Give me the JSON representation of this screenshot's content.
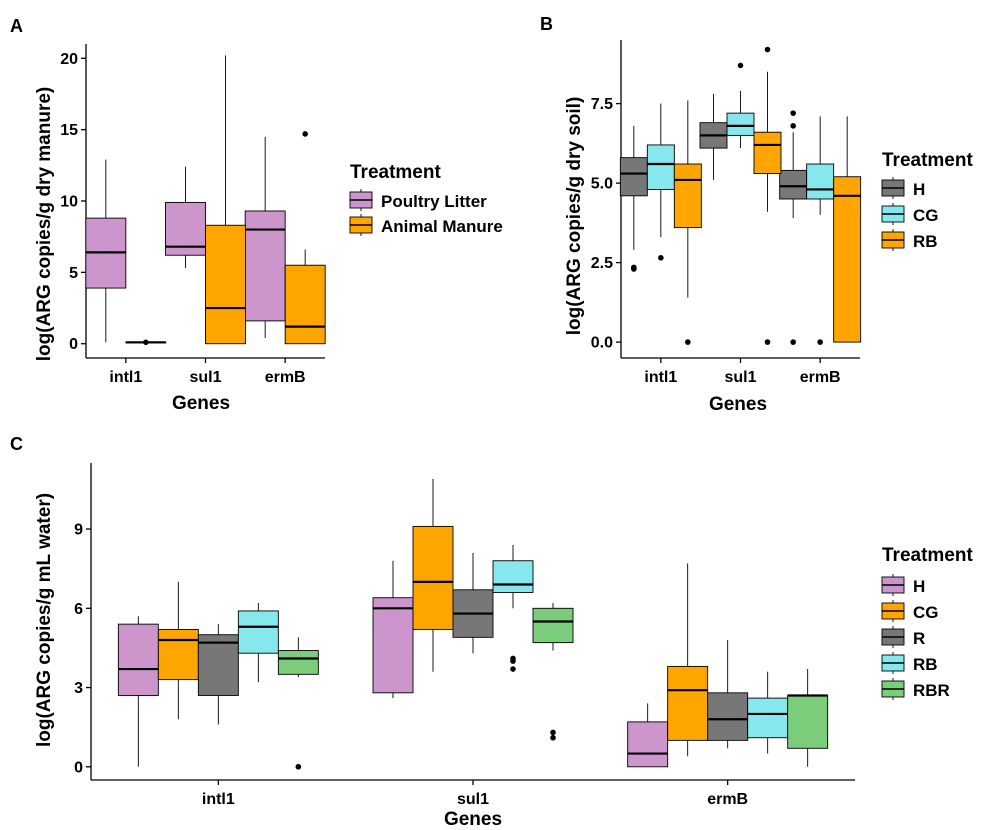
{
  "colors": {
    "poultry_litter": "#CC96CC",
    "animal_manure": "#FFA500",
    "H_B": "#777777",
    "CG_B": "#86E8EC",
    "RB_B": "#FFA500",
    "H_C": "#CC96CC",
    "CG_C": "#FFA500",
    "R": "#777777",
    "RB_C": "#86E8EC",
    "RBR": "#7BCD7B"
  },
  "chart_data": [
    {
      "panel": "A",
      "type": "box",
      "xlabel": "Genes",
      "ylabel": "log(ARG copies/g dry manure)",
      "categories": [
        "intl1",
        "sul1",
        "ermB"
      ],
      "yticks": [
        0,
        5,
        10,
        15,
        20
      ],
      "ylim": [
        -1.0,
        21.0
      ],
      "legend": {
        "title": "Treatment",
        "entries": [
          {
            "label": "Poultry Litter",
            "color": "poultry_litter"
          },
          {
            "label": "Animal Manure",
            "color": "animal_manure"
          }
        ]
      },
      "series": [
        {
          "name": "Poultry Litter",
          "color": "poultry_litter",
          "boxes": [
            {
              "min": 0.1,
              "q1": 3.9,
              "median": 6.4,
              "q3": 8.8,
              "max": 12.9,
              "outliers": []
            },
            {
              "min": 5.3,
              "q1": 6.2,
              "median": 6.8,
              "q3": 9.9,
              "max": 12.4,
              "outliers": []
            },
            {
              "min": 0.4,
              "q1": 1.6,
              "median": 8.0,
              "q3": 9.3,
              "max": 14.5,
              "outliers": []
            }
          ]
        },
        {
          "name": "Animal Manure",
          "color": "animal_manure",
          "boxes": [
            {
              "min": 0.1,
              "q1": 0.1,
              "median": 0.1,
              "q3": 0.1,
              "max": 0.1,
              "outliers": [
                0.1
              ]
            },
            {
              "min": 0.0,
              "q1": 0.0,
              "median": 2.5,
              "q3": 8.3,
              "max": 20.2,
              "outliers": []
            },
            {
              "min": 0.0,
              "q1": 0.0,
              "median": 1.2,
              "q3": 5.5,
              "max": 6.6,
              "outliers": [
                14.7
              ]
            }
          ]
        }
      ]
    },
    {
      "panel": "B",
      "type": "box",
      "xlabel": "Genes",
      "ylabel": "log(ARG copies/g dry soil)",
      "categories": [
        "intl1",
        "sul1",
        "ermB"
      ],
      "yticks": [
        0.0,
        2.5,
        5.0,
        7.5
      ],
      "ylim": [
        -0.5,
        9.5
      ],
      "legend": {
        "title": "Treatment",
        "entries": [
          {
            "label": "H",
            "color": "H_B"
          },
          {
            "label": "CG",
            "color": "CG_B"
          },
          {
            "label": "RB",
            "color": "RB_B"
          }
        ]
      },
      "series": [
        {
          "name": "H",
          "color": "H_B",
          "boxes": [
            {
              "min": 2.9,
              "q1": 4.6,
              "median": 5.3,
              "q3": 5.8,
              "max": 6.8,
              "outliers": [
                2.3,
                2.35
              ]
            },
            {
              "min": 5.1,
              "q1": 6.1,
              "median": 6.5,
              "q3": 6.9,
              "max": 7.8,
              "outliers": []
            },
            {
              "min": 3.9,
              "q1": 4.5,
              "median": 4.9,
              "q3": 5.4,
              "max": 6.6,
              "outliers": [
                0.0,
                6.8,
                7.2
              ]
            }
          ]
        },
        {
          "name": "CG",
          "color": "CG_B",
          "boxes": [
            {
              "min": 3.3,
              "q1": 4.8,
              "median": 5.6,
              "q3": 6.2,
              "max": 7.5,
              "outliers": [
                2.65
              ]
            },
            {
              "min": 6.1,
              "q1": 6.5,
              "median": 6.8,
              "q3": 7.2,
              "max": 7.9,
              "outliers": [
                8.7
              ]
            },
            {
              "min": 4.0,
              "q1": 4.5,
              "median": 4.8,
              "q3": 5.6,
              "max": 7.1,
              "outliers": [
                0.0
              ]
            }
          ]
        },
        {
          "name": "RB",
          "color": "RB_B",
          "boxes": [
            {
              "min": 1.4,
              "q1": 3.6,
              "median": 5.1,
              "q3": 5.6,
              "max": 7.6,
              "outliers": [
                0.0
              ]
            },
            {
              "min": 4.1,
              "q1": 5.3,
              "median": 6.2,
              "q3": 6.6,
              "max": 8.5,
              "outliers": [
                0.0,
                9.2
              ]
            },
            {
              "min": 0.0,
              "q1": 0.0,
              "median": 4.6,
              "q3": 5.2,
              "max": 7.1,
              "outliers": []
            }
          ]
        }
      ]
    },
    {
      "panel": "C",
      "type": "box",
      "xlabel": "Genes",
      "ylabel": "log(ARG copies/g mL water)",
      "categories": [
        "intl1",
        "sul1",
        "ermB"
      ],
      "yticks": [
        0,
        3,
        6,
        9
      ],
      "ylim": [
        -0.5,
        11.5
      ],
      "legend": {
        "title": "Treatment",
        "entries": [
          {
            "label": "H",
            "color": "H_C"
          },
          {
            "label": "CG",
            "color": "CG_C"
          },
          {
            "label": "R",
            "color": "R"
          },
          {
            "label": "RB",
            "color": "RB_C"
          },
          {
            "label": "RBR",
            "color": "RBR"
          }
        ]
      },
      "series": [
        {
          "name": "H",
          "color": "H_C",
          "boxes": [
            {
              "min": 0.0,
              "q1": 2.7,
              "median": 3.7,
              "q3": 5.4,
              "max": 5.7,
              "outliers": []
            },
            {
              "min": 2.6,
              "q1": 2.8,
              "median": 6.0,
              "q3": 6.4,
              "max": 7.8,
              "outliers": []
            },
            {
              "min": 0.0,
              "q1": 0.0,
              "median": 0.5,
              "q3": 1.7,
              "max": 2.4,
              "outliers": []
            }
          ]
        },
        {
          "name": "CG",
          "color": "CG_C",
          "boxes": [
            {
              "min": 1.8,
              "q1": 3.3,
              "median": 4.8,
              "q3": 5.2,
              "max": 7.0,
              "outliers": []
            },
            {
              "min": 3.6,
              "q1": 5.2,
              "median": 7.0,
              "q3": 9.1,
              "max": 10.9,
              "outliers": []
            },
            {
              "min": 0.4,
              "q1": 1.0,
              "median": 2.9,
              "q3": 3.8,
              "max": 7.7,
              "outliers": []
            }
          ]
        },
        {
          "name": "R",
          "color": "R",
          "boxes": [
            {
              "min": 1.6,
              "q1": 2.7,
              "median": 4.7,
              "q3": 5.0,
              "max": 5.4,
              "outliers": []
            },
            {
              "min": 4.3,
              "q1": 4.9,
              "median": 5.8,
              "q3": 6.7,
              "max": 8.1,
              "outliers": []
            },
            {
              "min": 0.7,
              "q1": 1.0,
              "median": 1.8,
              "q3": 2.8,
              "max": 4.8,
              "outliers": []
            }
          ]
        },
        {
          "name": "RB",
          "color": "RB_C",
          "boxes": [
            {
              "min": 3.2,
              "q1": 4.3,
              "median": 5.3,
              "q3": 5.9,
              "max": 6.2,
              "outliers": []
            },
            {
              "min": 6.0,
              "q1": 6.6,
              "median": 6.9,
              "q3": 7.8,
              "max": 8.4,
              "outliers": [
                3.7,
                4.0,
                4.1
              ]
            },
            {
              "min": 0.5,
              "q1": 1.1,
              "median": 2.0,
              "q3": 2.6,
              "max": 3.6,
              "outliers": []
            }
          ]
        },
        {
          "name": "RBR",
          "color": "RBR",
          "boxes": [
            {
              "min": 3.4,
              "q1": 3.5,
              "median": 4.1,
              "q3": 4.4,
              "max": 4.9,
              "outliers": [
                0.0
              ]
            },
            {
              "min": 4.4,
              "q1": 4.7,
              "median": 5.5,
              "q3": 6.0,
              "max": 6.2,
              "outliers": [
                1.1,
                1.3
              ]
            },
            {
              "min": 0.0,
              "q1": 0.7,
              "median": 2.7,
              "q3": 2.7,
              "max": 3.7,
              "outliers": []
            }
          ]
        }
      ]
    }
  ]
}
